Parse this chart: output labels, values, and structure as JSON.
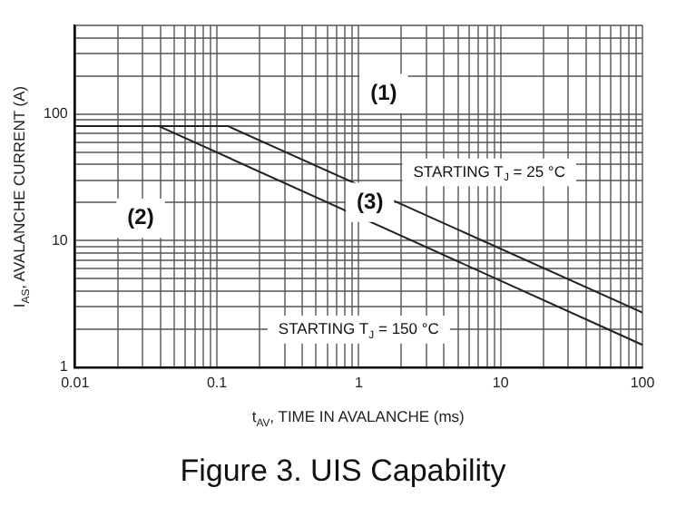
{
  "chart_data": {
    "type": "line",
    "title": "Figure 3. UIS Capability",
    "xlabel": "t$_{AV}$, TIME IN AVALANCHE (ms)",
    "ylabel": "I$_{AS}$, AVALANCHE CURRENT (A)",
    "series": [
      {
        "color": "#222222",
        "x": [
          0.01,
          0.12,
          100
        ],
        "values": [
          80,
          80,
          2.7
        ]
      },
      {
        "color": "#222222",
        "x": [
          0.01,
          0.039,
          100
        ],
        "values": [
          80,
          80,
          1.5
        ]
      }
    ],
    "log": "xy",
    "xlim": [
      0.01,
      100
    ],
    "ylim": [
      1,
      500
    ],
    "xticks": [
      0.01,
      0.1,
      1,
      10,
      100
    ],
    "yticks": [
      1,
      10,
      100
    ],
    "grid": true,
    "legend": false,
    "marker": "none",
    "line_style": "solid",
    "annotations": [
      {
        "text": "(1)",
        "x": 1.5,
        "y": 145
      },
      {
        "text": "(2)",
        "x": 0.029,
        "y": 15
      },
      {
        "text": "(3)",
        "x": 1.2,
        "y": 20
      },
      "STARTING T$_{J}$ = 25 °C",
      "STARTING T$_{J}$ = 150 °C"
    ]
  }
}
